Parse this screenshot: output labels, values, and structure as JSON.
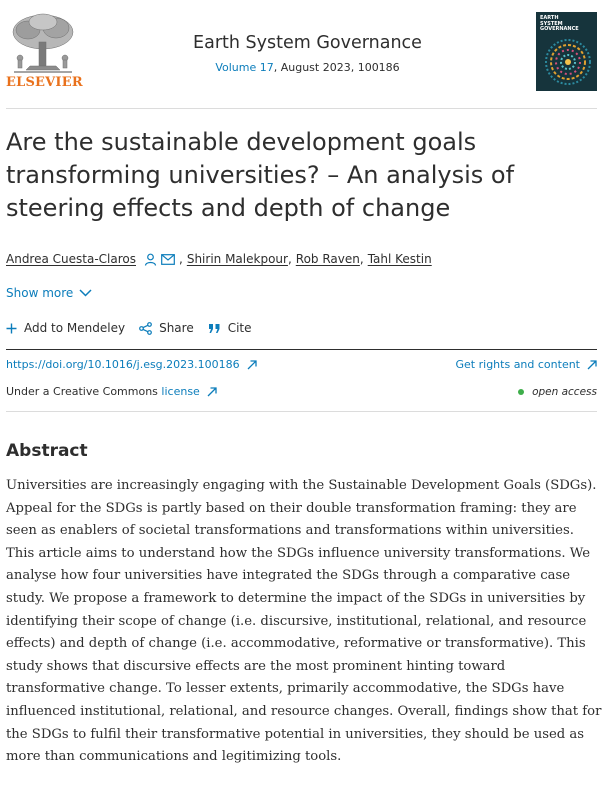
{
  "header": {
    "publisher": "ELSEVIER",
    "journal": "Earth System Governance",
    "volume_link": "Volume 17",
    "issue_rest": ", August 2023, 100186",
    "cover_lines": [
      "EARTH",
      "SYSTEM",
      "GOVERNANCE"
    ]
  },
  "article": {
    "title": "Are the sustainable development goals transforming universities? – An analysis of steering effects and depth of change",
    "authors": [
      {
        "name": "Andrea Cuesta-Claros"
      },
      {
        "name": "Shirin Malekpour"
      },
      {
        "name": "Rob Raven"
      },
      {
        "name": "Tahl Kestin"
      }
    ],
    "show_more": "Show more",
    "tools": {
      "mendeley": "Add to Mendeley",
      "share": "Share",
      "cite": "Cite"
    },
    "doi": "https://doi.org/10.1016/j.esg.2023.100186",
    "rights": "Get rights and content",
    "license_prefix": "Under a Creative Commons ",
    "license_link": "license",
    "open_access": "open access"
  },
  "abstract": {
    "heading": "Abstract",
    "text": "Universities are increasingly engaging with the Sustainable Development Goals (SDGs). Appeal for the SDGs is partly based on their double transformation framing: they are seen as enablers of societal transformations and transformations within universities. This article aims to understand how the SDGs influence university transformations. We analyse how four universities have integrated the SDGs through a comparative case study. We propose a framework to determine the impact of the SDGs in universities by identifying their scope of change (i.e. discursive, institutional, relational, and resource effects) and depth of change (i.e. accommodative, reformative or transformative). This study shows that discursive effects are the most prominent hinting toward transformative change. To lesser extents, primarily accommodative, the SDGs have influenced institutional, relational, and resource changes. Overall, findings show that for the SDGs to fulfil their transformative potential in universities, they should be used as more than communications and legitimizing tools."
  },
  "colors": {
    "link": "#0c7dbb",
    "publisher_orange": "#e9711c",
    "open_access_green": "#3eae4a"
  }
}
